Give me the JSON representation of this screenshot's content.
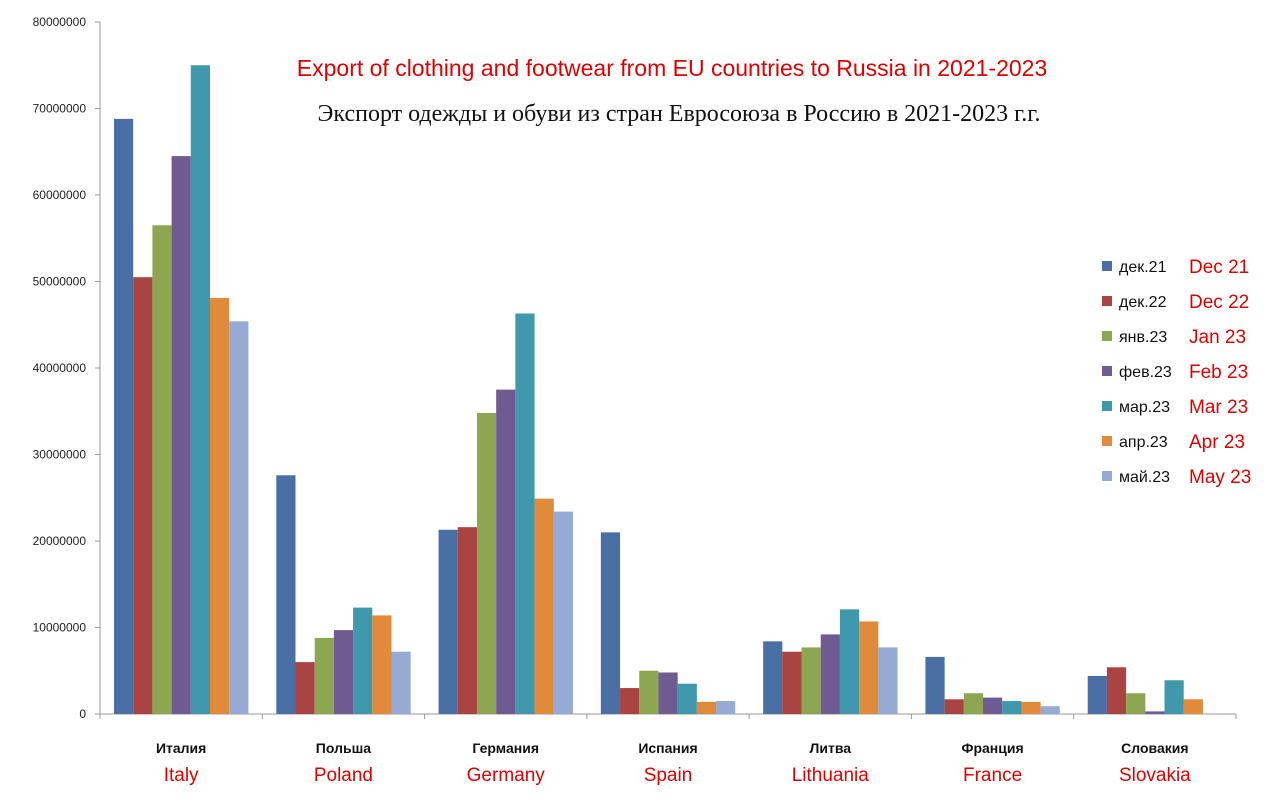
{
  "chart_data": {
    "type": "bar",
    "title": "Export of clothing and footwear from EU countries to Russia in 2021-2023",
    "subtitle": "Экспорт одежды и обуви из стран Евросоюза в Россию в 2021-2023 г.г.",
    "categories": [
      {
        "ru": "Италия",
        "en": "Italy"
      },
      {
        "ru": "Польша",
        "en": "Poland"
      },
      {
        "ru": "Германия",
        "en": "Germany"
      },
      {
        "ru": "Испания",
        "en": "Spain"
      },
      {
        "ru": "Литва",
        "en": "Lithuania"
      },
      {
        "ru": "Франция",
        "en": "France"
      },
      {
        "ru": "Словакия",
        "en": "Slovakia"
      }
    ],
    "ylim": [
      0,
      80000000
    ],
    "yticks": [
      "0",
      "10000000",
      "20000000",
      "30000000",
      "40000000",
      "50000000",
      "60000000",
      "70000000",
      "80000000"
    ],
    "legend_position": "right",
    "series": [
      {
        "name": "дек.21",
        "name_en": "Dec 21",
        "color": "#4a6fa5",
        "values": [
          68800000,
          27600000,
          21300000,
          21000000,
          8400000,
          6600000,
          4400000
        ]
      },
      {
        "name": "дек.22",
        "name_en": "Dec 22",
        "color": "#a94442",
        "values": [
          50500000,
          6000000,
          21600000,
          3000000,
          7200000,
          1700000,
          5400000
        ]
      },
      {
        "name": "янв.23",
        "name_en": "Jan 23",
        "color": "#8ca652",
        "values": [
          56500000,
          8800000,
          34800000,
          5000000,
          7700000,
          2400000,
          2400000
        ]
      },
      {
        "name": "фев.23",
        "name_en": "Feb 23",
        "color": "#705a92",
        "values": [
          64500000,
          9700000,
          37500000,
          4800000,
          9200000,
          1900000,
          300000
        ]
      },
      {
        "name": "мар.23",
        "name_en": "Mar 23",
        "color": "#4098ad",
        "values": [
          75000000,
          12300000,
          46300000,
          3500000,
          12100000,
          1500000,
          3900000
        ]
      },
      {
        "name": "апр.23",
        "name_en": "Apr 23",
        "color": "#e08a3c",
        "values": [
          48100000,
          11400000,
          24900000,
          1400000,
          10700000,
          1400000,
          1700000
        ]
      },
      {
        "name": "май.23",
        "name_en": "May 23",
        "color": "#95abd4",
        "values": [
          45400000,
          7200000,
          23400000,
          1500000,
          7700000,
          900000,
          0
        ]
      }
    ]
  }
}
